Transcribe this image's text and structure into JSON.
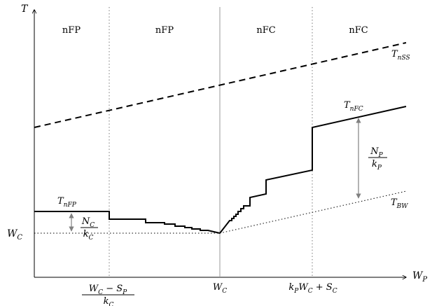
{
  "axes": {
    "y_label": "T",
    "x_label": "W_P",
    "y_tick": "W_C",
    "x_ticks": [
      {
        "numerator": "W_C − S_P",
        "denominator": "k_C"
      },
      {
        "text": "W_C"
      },
      {
        "text": "k_P W_C + S_C"
      }
    ]
  },
  "regions": [
    "nFP",
    "nFP",
    "nFC",
    "nFC"
  ],
  "curves": {
    "t_nss": "T_nSS",
    "t_nfp": "T_nFP",
    "t_nfc": "T_nFC",
    "t_bw": "T_BW"
  },
  "gaps": {
    "left": {
      "numerator": "N_C",
      "denominator": "k_C"
    },
    "right": {
      "numerator": "N_P",
      "denominator": "k_P"
    }
  },
  "colors": {
    "ink": "#000000",
    "divider": "#8c8c8c",
    "gap_arrow": "#808080"
  }
}
